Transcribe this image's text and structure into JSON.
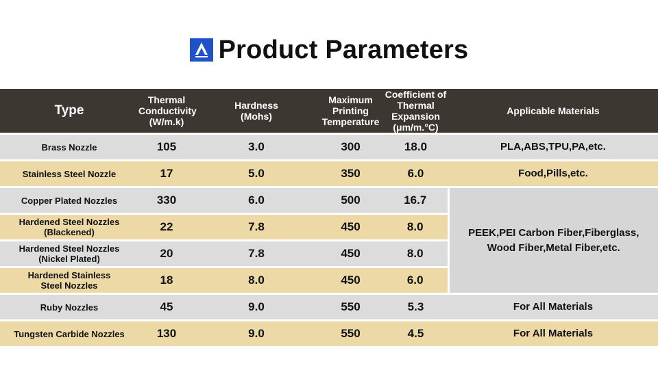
{
  "header": {
    "title": "Product Parameters",
    "logo_icon": "brand-logo-icon",
    "logo_color": "#1f52c9"
  },
  "table": {
    "columns": [
      "Type",
      "Thermal Conductivity (W/m.k)",
      "Hardness (Mohs)",
      "Maximum Printing Temperature",
      "Coefficient of Thermal Expansion (μm/m.°C)",
      "Applicable Materials"
    ],
    "column_lines": [
      [
        "Type"
      ],
      [
        "Thermal Conductivity",
        "(W/m.k)"
      ],
      [
        "Hardness",
        "(Mohs)"
      ],
      [
        "Maximum",
        "Printing",
        "Temperature"
      ],
      [
        "Coefficient of",
        "Thermal Expansion",
        "(μm/m.°C)"
      ],
      [
        "Applicable Materials"
      ]
    ],
    "rows": [
      {
        "type": "Brass Nozzle",
        "conductivity": "105",
        "hardness": "3.0",
        "max_temp": "300",
        "expansion": "18.0",
        "materials": "PLA,ABS,TPU,PA,etc."
      },
      {
        "type": "Stainless Steel Nozzle",
        "conductivity": "17",
        "hardness": "5.0",
        "max_temp": "350",
        "expansion": "6.0",
        "materials": "Food,Pills,etc."
      },
      {
        "type": "Copper Plated Nozzles",
        "conductivity": "330",
        "hardness": "6.0",
        "max_temp": "500",
        "expansion": "16.7",
        "materials": "PEEK,PEI Carbon Fiber,Fiberglass, Wood Fiber,Metal Fiber,etc."
      },
      {
        "type": "Hardened Steel Nozzles (Blackened)",
        "conductivity": "22",
        "hardness": "7.8",
        "max_temp": "450",
        "expansion": "8.0",
        "materials": ""
      },
      {
        "type": "Hardened Steel Nozzles (Nickel Plated)",
        "conductivity": "20",
        "hardness": "7.8",
        "max_temp": "450",
        "expansion": "8.0",
        "materials": ""
      },
      {
        "type": "Hardened Stainless Steel Nozzles",
        "conductivity": "18",
        "hardness": "8.0",
        "max_temp": "450",
        "expansion": "6.0",
        "materials": ""
      },
      {
        "type": "Ruby Nozzles",
        "conductivity": "45",
        "hardness": "9.0",
        "max_temp": "550",
        "expansion": "5.3",
        "materials": "For All Materials"
      },
      {
        "type": "Tungsten Carbide Nozzles",
        "conductivity": "130",
        "hardness": "9.0",
        "max_temp": "550",
        "expansion": "4.5",
        "materials": "For All Materials"
      }
    ],
    "type_lines": {
      "3": [
        "Hardened Steel Nozzles",
        "(Blackened)"
      ],
      "4": [
        "Hardened Steel Nozzles",
        "(Nickel Plated)"
      ],
      "5": [
        "Hardened Stainless",
        "Steel Nozzles"
      ]
    },
    "merged_material_lines": [
      "PEEK,PEI Carbon Fiber,Fiberglass,",
      "Wood Fiber,Metal Fiber,etc."
    ],
    "colors": {
      "header_bg": "#3d3732",
      "row_gray": "#dcdcdc",
      "row_tan": "#ecd9a6"
    }
  }
}
